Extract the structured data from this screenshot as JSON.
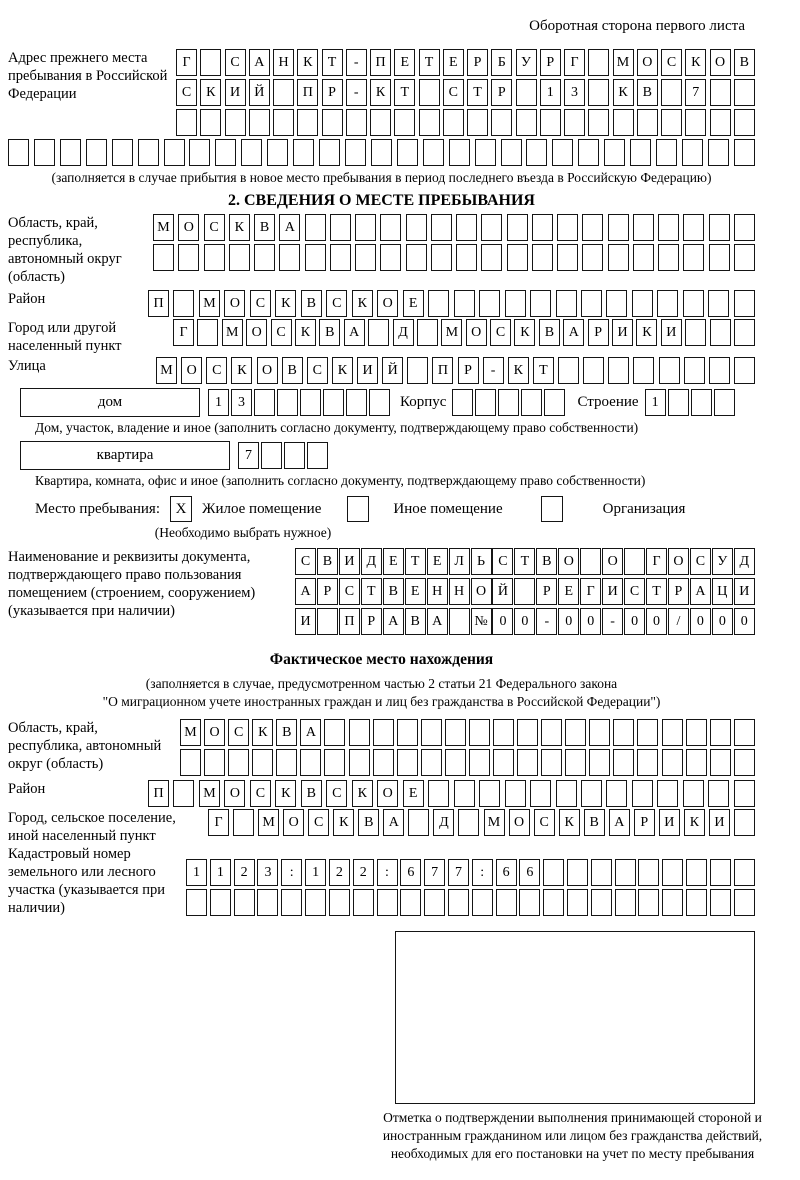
{
  "header": {
    "note": "Оборотная сторона первого листа"
  },
  "prev_address": {
    "label": "Адрес прежнего места пребывания в Российской Федерации",
    "rows": [
      {
        "cells": "Г САНКТ-ПЕТЕРБУРГ МОСКОВ",
        "total": 24
      },
      {
        "cells": "СКИЙ ПР-КТ СТР 13 КВ 7",
        "total": 24
      },
      {
        "cells": "",
        "total": 24
      }
    ],
    "extra_row": {
      "cells": "",
      "total": 29
    },
    "note": "(заполняется в случае прибытия в новое место пребывания в период последнего въезда в Российскую Федерацию)"
  },
  "section2": {
    "title": "2. СВЕДЕНИЯ О МЕСТЕ ПРЕБЫВАНИЯ",
    "oblast": {
      "label": "Область, край, республика, автономный округ (область)",
      "rows": [
        {
          "cells": "МОСКВА",
          "total": 24
        },
        {
          "cells": "",
          "total": 24
        }
      ]
    },
    "raion": {
      "label": "Район",
      "row": {
        "cells": "П МОСКВСКОЕ",
        "total": 24
      }
    },
    "gorod": {
      "label": "Город или другой населенный пункт",
      "row": {
        "cells": "Г МОСКВА Д МОСКВАРИКИ",
        "total": 24
      }
    },
    "ulitsa": {
      "label": "Улица",
      "row": {
        "cells": "МОСКОВСКИЙ ПР-КТ",
        "total": 24
      }
    },
    "dom": {
      "box_label": "дом",
      "number": {
        "cells": "13",
        "total": 8
      },
      "korpus_label": "Корпус",
      "korpus": {
        "cells": "",
        "total": 5
      },
      "stroenie_label": "Строение",
      "stroenie": {
        "cells": "1",
        "total": 4
      },
      "note": "Дом, участок, владение и иное (заполнить согласно документу, подтверждающему право собственности)"
    },
    "kvartira": {
      "box_label": "квартира",
      "number": {
        "cells": "7",
        "total": 4
      },
      "note": "Квартира, комната, офис и иное (заполнить согласно документу, подтверждающему право собственности)"
    },
    "mesto": {
      "label": "Место пребывания:",
      "options": [
        {
          "label": "Жилое помещение",
          "checked": "X"
        },
        {
          "label": "Иное помещение",
          "checked": ""
        },
        {
          "label": "Организация",
          "checked": ""
        }
      ],
      "note": "(Необходимо выбрать нужное)"
    },
    "doc": {
      "label": "Наименование и реквизиты документа, подтверждающего право пользования помещением (строением, сооружением) (указывается при наличии)",
      "rows": [
        {
          "cells": "СВИДЕТЕЛЬСТВО О ГОСУД",
          "total": 21
        },
        {
          "cells": "АРСТВЕННОЙ РЕГИСТРАЦИ",
          "total": 21
        },
        {
          "cells": "И ПРАВА №00-00-00/000",
          "total": 21
        }
      ]
    }
  },
  "fact": {
    "title": "Фактическое место нахождения",
    "note_line1": "(заполняется в случае, предусмотренном частью 2 статьи 21 Федерального закона",
    "note_line2": "\"О миграционном учете иностранных граждан и лиц без гражданства в Российской Федерации\")",
    "oblast": {
      "label": "Область, край, республика, автономный округ (область)",
      "rows": [
        {
          "cells": "МОСКВА",
          "total": 24
        },
        {
          "cells": "",
          "total": 24
        }
      ]
    },
    "raion": {
      "label": "Район",
      "row": {
        "cells": "П МОСКВСКОЕ",
        "total": 24
      }
    },
    "gorod": {
      "label": "Город, сельское поселение, иной населенный пункт",
      "row": {
        "cells": "Г МОСКВА Д МОСКВАРИКИ",
        "total": 22
      }
    },
    "kadastr": {
      "label": "Кадастровый номер земельного или лесного участка (указывается при наличии)",
      "rows": [
        {
          "cells": "1123:122:677:66",
          "total": 24
        },
        {
          "cells": "",
          "total": 24
        }
      ]
    },
    "stamp_note": "Отметка о подтверждении выполнения принимающей стороной и иностранным гражданином или лицом без гражданства действий, необходимых для его постановки на учет по месту пребывания"
  }
}
